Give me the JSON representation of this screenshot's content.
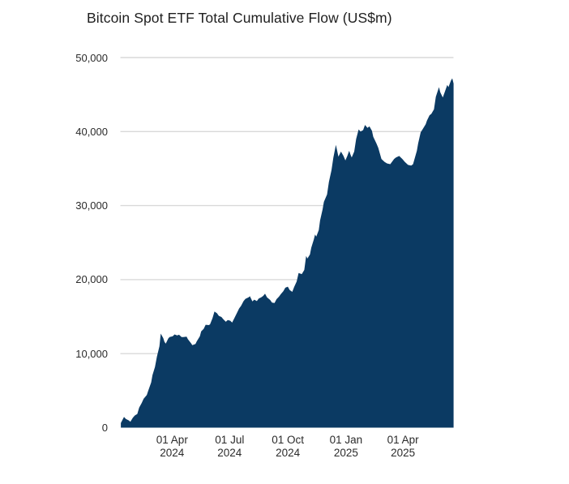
{
  "colors": {
    "area_fill": "#0b3a63",
    "gridline": "#d9d9d9",
    "tick_text": "#2b2b2b",
    "title_text": "#1f1f1f",
    "background": "#ffffff"
  },
  "chart_data": {
    "type": "area",
    "title": "Bitcoin Spot ETF Total Cumulative Flow (US$m)",
    "xlabel": "",
    "ylabel": "",
    "ylim": [
      0,
      50000
    ],
    "grid": "horizontal",
    "legend": "none",
    "y_ticks": [
      {
        "label": "50,000",
        "value": 50000
      },
      {
        "label": "40,000",
        "value": 40000
      },
      {
        "label": "30,000",
        "value": 30000
      },
      {
        "label": "20,000",
        "value": 20000
      },
      {
        "label": "10,000",
        "value": 10000
      },
      {
        "label": "0",
        "value": 0
      }
    ],
    "x_ticks": [
      {
        "line1": "01 Apr",
        "line2": "2024",
        "date": "2024-04-01"
      },
      {
        "line1": "01 Jul",
        "line2": "2024",
        "date": "2024-07-01"
      },
      {
        "line1": "01 Oct",
        "line2": "2024",
        "date": "2024-10-01"
      },
      {
        "line1": "01 Jan",
        "line2": "2025",
        "date": "2025-01-01"
      },
      {
        "line1": "01 Apr",
        "line2": "2025",
        "date": "2025-04-01"
      }
    ],
    "series": [
      {
        "name": "Total Cumulative Flow (US$m)",
        "points": [
          [
            "2024-01-11",
            630
          ],
          [
            "2024-01-16",
            1450
          ],
          [
            "2024-01-19",
            1170
          ],
          [
            "2024-01-24",
            950
          ],
          [
            "2024-01-26",
            800
          ],
          [
            "2024-01-30",
            1350
          ],
          [
            "2024-02-02",
            1640
          ],
          [
            "2024-02-06",
            1850
          ],
          [
            "2024-02-09",
            2700
          ],
          [
            "2024-02-13",
            3330
          ],
          [
            "2024-02-16",
            3900
          ],
          [
            "2024-02-21",
            4400
          ],
          [
            "2024-02-23",
            4900
          ],
          [
            "2024-02-28",
            6100
          ],
          [
            "2024-03-01",
            7100
          ],
          [
            "2024-03-05",
            8200
          ],
          [
            "2024-03-08",
            9600
          ],
          [
            "2024-03-12",
            11000
          ],
          [
            "2024-03-14",
            12700
          ],
          [
            "2024-03-18",
            12100
          ],
          [
            "2024-03-20",
            11600
          ],
          [
            "2024-03-22",
            11350
          ],
          [
            "2024-03-26",
            12050
          ],
          [
            "2024-03-28",
            12250
          ],
          [
            "2024-04-02",
            12350
          ],
          [
            "2024-04-05",
            12600
          ],
          [
            "2024-04-09",
            12450
          ],
          [
            "2024-04-12",
            12550
          ],
          [
            "2024-04-16",
            12250
          ],
          [
            "2024-04-19",
            12250
          ],
          [
            "2024-04-24",
            12300
          ],
          [
            "2024-04-26",
            11950
          ],
          [
            "2024-05-01",
            11400
          ],
          [
            "2024-05-03",
            11150
          ],
          [
            "2024-05-08",
            11300
          ],
          [
            "2024-05-10",
            11650
          ],
          [
            "2024-05-15",
            12350
          ],
          [
            "2024-05-17",
            13000
          ],
          [
            "2024-05-21",
            13350
          ],
          [
            "2024-05-24",
            13900
          ],
          [
            "2024-05-29",
            13850
          ],
          [
            "2024-05-31",
            13950
          ],
          [
            "2024-06-04",
            14800
          ],
          [
            "2024-06-07",
            15700
          ],
          [
            "2024-06-11",
            15450
          ],
          [
            "2024-06-14",
            15100
          ],
          [
            "2024-06-18",
            14950
          ],
          [
            "2024-06-21",
            14650
          ],
          [
            "2024-06-25",
            14300
          ],
          [
            "2024-06-28",
            14550
          ],
          [
            "2024-07-02",
            14450
          ],
          [
            "2024-07-05",
            14200
          ],
          [
            "2024-07-09",
            14900
          ],
          [
            "2024-07-12",
            15400
          ],
          [
            "2024-07-16",
            16100
          ],
          [
            "2024-07-19",
            16450
          ],
          [
            "2024-07-23",
            17100
          ],
          [
            "2024-07-26",
            17400
          ],
          [
            "2024-07-31",
            17600
          ],
          [
            "2024-08-02",
            17750
          ],
          [
            "2024-08-06",
            17050
          ],
          [
            "2024-08-09",
            17300
          ],
          [
            "2024-08-13",
            17100
          ],
          [
            "2024-08-16",
            17450
          ],
          [
            "2024-08-20",
            17600
          ],
          [
            "2024-08-23",
            17800
          ],
          [
            "2024-08-26",
            18100
          ],
          [
            "2024-08-29",
            17600
          ],
          [
            "2024-09-03",
            17250
          ],
          [
            "2024-09-06",
            16900
          ],
          [
            "2024-09-10",
            16850
          ],
          [
            "2024-09-13",
            17350
          ],
          [
            "2024-09-17",
            17700
          ],
          [
            "2024-09-20",
            18050
          ],
          [
            "2024-09-24",
            18450
          ],
          [
            "2024-09-27",
            18900
          ],
          [
            "2024-10-01",
            19050
          ],
          [
            "2024-10-04",
            18600
          ],
          [
            "2024-10-08",
            18350
          ],
          [
            "2024-10-11",
            19000
          ],
          [
            "2024-10-15",
            19750
          ],
          [
            "2024-10-18",
            20900
          ],
          [
            "2024-10-23",
            20750
          ],
          [
            "2024-10-27",
            21300
          ],
          [
            "2024-10-30",
            23200
          ],
          [
            "2024-11-01",
            22850
          ],
          [
            "2024-11-05",
            23400
          ],
          [
            "2024-11-07",
            24300
          ],
          [
            "2024-11-11",
            25400
          ],
          [
            "2024-11-13",
            26100
          ],
          [
            "2024-11-15",
            25800
          ],
          [
            "2024-11-19",
            26700
          ],
          [
            "2024-11-21",
            28000
          ],
          [
            "2024-11-25",
            29500
          ],
          [
            "2024-11-27",
            30500
          ],
          [
            "2024-12-02",
            31500
          ],
          [
            "2024-12-05",
            33200
          ],
          [
            "2024-12-09",
            34800
          ],
          [
            "2024-12-12",
            36500
          ],
          [
            "2024-12-16",
            38200
          ],
          [
            "2024-12-18",
            37400
          ],
          [
            "2024-12-20",
            36600
          ],
          [
            "2024-12-24",
            37300
          ],
          [
            "2024-12-28",
            36700
          ],
          [
            "2024-12-31",
            36100
          ],
          [
            "2025-01-03",
            36700
          ],
          [
            "2025-01-06",
            37400
          ],
          [
            "2025-01-08",
            36900
          ],
          [
            "2025-01-10",
            36500
          ],
          [
            "2025-01-14",
            37300
          ],
          [
            "2025-01-17",
            39000
          ],
          [
            "2025-01-21",
            40300
          ],
          [
            "2025-01-24",
            40000
          ],
          [
            "2025-01-28",
            40200
          ],
          [
            "2025-01-31",
            40900
          ],
          [
            "2025-02-04",
            40500
          ],
          [
            "2025-02-07",
            40700
          ],
          [
            "2025-02-11",
            40100
          ],
          [
            "2025-02-13",
            39300
          ],
          [
            "2025-02-18",
            38400
          ],
          [
            "2025-02-21",
            37800
          ],
          [
            "2025-02-26",
            36300
          ],
          [
            "2025-03-03",
            35900
          ],
          [
            "2025-03-07",
            35700
          ],
          [
            "2025-03-12",
            35600
          ],
          [
            "2025-03-18",
            36300
          ],
          [
            "2025-03-21",
            36500
          ],
          [
            "2025-03-26",
            36700
          ],
          [
            "2025-03-31",
            36300
          ],
          [
            "2025-04-04",
            35900
          ],
          [
            "2025-04-09",
            35500
          ],
          [
            "2025-04-14",
            35400
          ],
          [
            "2025-04-17",
            35600
          ],
          [
            "2025-04-23",
            37400
          ],
          [
            "2025-04-25",
            38400
          ],
          [
            "2025-04-29",
            39900
          ],
          [
            "2025-05-02",
            40300
          ],
          [
            "2025-05-07",
            41000
          ],
          [
            "2025-05-09",
            41500
          ],
          [
            "2025-05-13",
            42200
          ],
          [
            "2025-05-16",
            42400
          ],
          [
            "2025-05-20",
            43000
          ],
          [
            "2025-05-23",
            44700
          ],
          [
            "2025-05-28",
            46000
          ],
          [
            "2025-05-30",
            45300
          ],
          [
            "2025-06-03",
            44600
          ],
          [
            "2025-06-06",
            45300
          ],
          [
            "2025-06-10",
            46300
          ],
          [
            "2025-06-12",
            46000
          ],
          [
            "2025-06-16",
            46900
          ],
          [
            "2025-06-18",
            47200
          ],
          [
            "2025-06-20",
            46500
          ]
        ]
      }
    ]
  }
}
